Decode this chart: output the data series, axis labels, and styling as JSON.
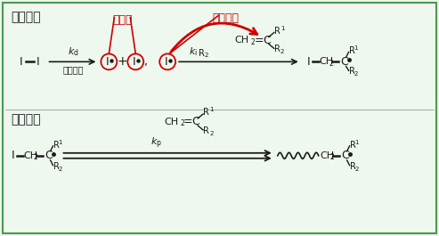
{
  "bg_color": "#eef8ee",
  "border_color": "#4a9a4a",
  "text_black": "#1a1a1a",
  "text_red": "#cc0000",
  "title1": "开始反应",
  "title2": "成长反应",
  "label_ziyouji": "自由基",
  "label_jingong": "进攻双键",
  "figsize": [
    4.93,
    2.65
  ],
  "dpi": 100
}
